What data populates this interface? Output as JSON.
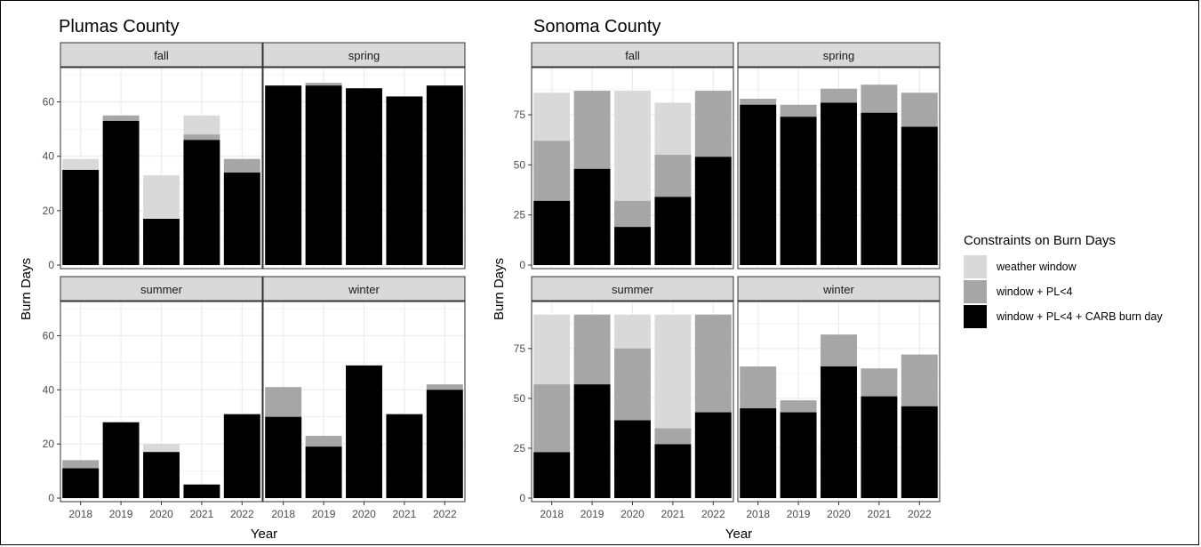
{
  "chart_data": {
    "type": "bar",
    "stacked": true,
    "facets": [
      "fall",
      "spring",
      "summer",
      "winter"
    ],
    "categories": [
      "2018",
      "2019",
      "2020",
      "2021",
      "2022"
    ],
    "xlabel": "Year",
    "ylabel": "Burn Days",
    "legend": {
      "title": "Constraints on Burn Days",
      "position": "right",
      "entries": [
        {
          "label": "weather window",
          "color": "#d9d9d9"
        },
        {
          "label": "window + PL<4",
          "color": "#a6a6a6"
        },
        {
          "label": "window + PL<4 + CARB burn day",
          "color": "#000000"
        }
      ]
    },
    "panels": [
      {
        "title": "Plumas County",
        "ylim": [
          0,
          70
        ],
        "yticks": [
          0,
          20,
          40,
          60
        ],
        "grid": true,
        "facets": {
          "fall": {
            "weather window": [
              39,
              55,
              33,
              55,
              39
            ],
            "window + PL<4": [
              35,
              55,
              17,
              48,
              39
            ],
            "window + PL<4 + CARB burn day": [
              35,
              53,
              17,
              46,
              34
            ]
          },
          "spring": {
            "weather window": [
              66,
              67,
              65,
              62,
              66
            ],
            "window + PL<4": [
              66,
              67,
              65,
              62,
              66
            ],
            "window + PL<4 + CARB burn day": [
              66,
              66,
              65,
              62,
              66
            ]
          },
          "summer": {
            "weather window": [
              14,
              28,
              20,
              5,
              31
            ],
            "window + PL<4": [
              14,
              28,
              17,
              5,
              31
            ],
            "window + PL<4 + CARB burn day": [
              11,
              28,
              17,
              5,
              31
            ]
          },
          "winter": {
            "weather window": [
              41,
              23,
              49,
              31,
              42
            ],
            "window + PL<4": [
              41,
              23,
              49,
              31,
              42
            ],
            "window + PL<4 + CARB burn day": [
              30,
              19,
              49,
              31,
              40
            ]
          }
        }
      },
      {
        "title": "Sonoma County",
        "ylim": [
          0,
          95
        ],
        "yticks": [
          0,
          25,
          50,
          75
        ],
        "grid": true,
        "facets": {
          "fall": {
            "weather window": [
              86,
              87,
              87,
              81,
              87
            ],
            "window + PL<4": [
              62,
              87,
              32,
              55,
              87
            ],
            "window + PL<4 + CARB burn day": [
              32,
              48,
              19,
              34,
              54
            ]
          },
          "spring": {
            "weather window": [
              83,
              80,
              88,
              90,
              86
            ],
            "window + PL<4": [
              83,
              80,
              88,
              90,
              86
            ],
            "window + PL<4 + CARB burn day": [
              80,
              74,
              81,
              76,
              69
            ]
          },
          "summer": {
            "weather window": [
              92,
              92,
              92,
              92,
              92
            ],
            "window + PL<4": [
              57,
              92,
              75,
              35,
              92
            ],
            "window + PL<4 + CARB burn day": [
              23,
              57,
              39,
              27,
              43
            ]
          },
          "winter": {
            "weather window": [
              66,
              49,
              82,
              65,
              72
            ],
            "window + PL<4": [
              66,
              49,
              82,
              65,
              72
            ],
            "window + PL<4 + CARB burn day": [
              45,
              43,
              66,
              51,
              46
            ]
          }
        }
      }
    ]
  }
}
